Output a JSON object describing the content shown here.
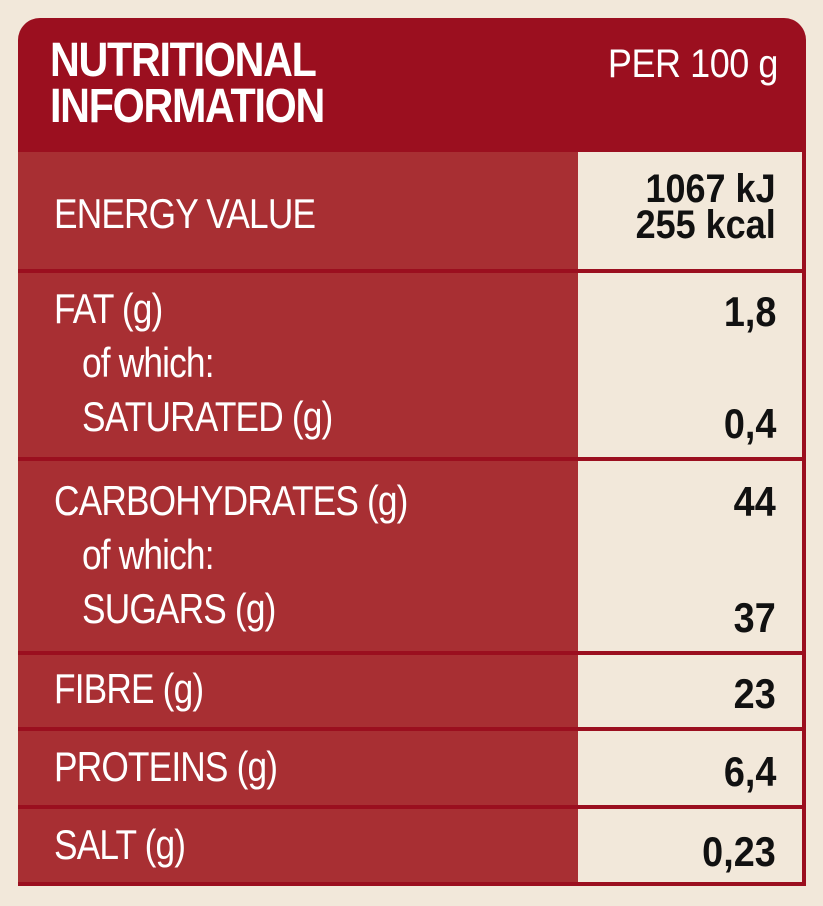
{
  "header": {
    "title_line1": "NUTRITIONAL",
    "title_line2": "INFORMATION",
    "unit": "PER 100 g"
  },
  "rows": {
    "energy": {
      "label": "ENERGY VALUE",
      "value_kj": "1067 kJ",
      "value_kcal": "255 kcal"
    },
    "fat": {
      "label": "FAT (g)",
      "sub_label": "of which:",
      "sub_item": "SATURATED (g)",
      "value": "1,8",
      "sub_value": "0,4"
    },
    "carbohydrates": {
      "label": "CARBOHYDRATES (g)",
      "sub_label": "of which:",
      "sub_item": "SUGARS (g)",
      "value": "44",
      "sub_value": "37"
    },
    "fibre": {
      "label": "FIBRE (g)",
      "value": "23"
    },
    "proteins": {
      "label": "PROTEINS (g)",
      "value": "6,4"
    },
    "salt": {
      "label": "SALT (g)",
      "value": "0,23"
    }
  },
  "colors": {
    "header_red": "#9b0f1f",
    "label_red": "#a82f33",
    "background": "#f2e8da",
    "value_text": "#111111"
  }
}
